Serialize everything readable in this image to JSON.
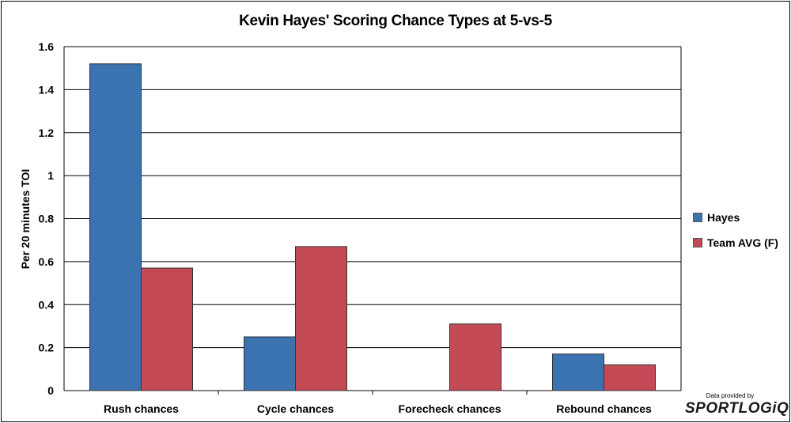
{
  "chart_data": {
    "type": "bar",
    "title": "Kevin Hayes' Scoring Chance Types at 5-vs-5",
    "ylabel": "Per 20 minutes TOI",
    "xlabel": "",
    "categories": [
      "Rush chances",
      "Cycle chances",
      "Forecheck chances",
      "Rebound chances"
    ],
    "series": [
      {
        "name": "Hayes",
        "color": "#3a73b0",
        "values": [
          1.52,
          0.25,
          0,
          0.17
        ]
      },
      {
        "name": "Team AVG (F)",
        "color": "#c44a55",
        "values": [
          0.57,
          0.67,
          0.31,
          0.12
        ]
      }
    ],
    "ylim": [
      0,
      1.6
    ],
    "yticks": [
      "0",
      "0.2",
      "0.4",
      "0.6",
      "0.8",
      "1",
      "1.2",
      "1.4",
      "1.6"
    ],
    "grid": true,
    "legend_position": "right"
  },
  "credit": {
    "text": "Data provided by",
    "logo": "SPORTLOGiQ"
  }
}
